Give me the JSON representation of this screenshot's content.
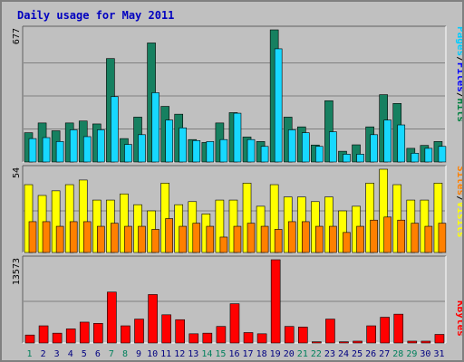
{
  "title": "Daily usage for May 2011",
  "colors": {
    "background": "#c0c0c0",
    "panel": "#c0c0c0",
    "grid": "#808080",
    "pages": "#00ccff",
    "files": "#0000ff",
    "hits": "#008040",
    "hits_bar": "#168060",
    "pages_bar": "#17d8ff",
    "visits": "#ffff00",
    "sites": "#ff8000",
    "kbytes": "#ff0000",
    "weekend_label": "#00805c",
    "weekday_label": "#008040",
    "title": "#0000c0"
  },
  "legend": {
    "pages": "Pages",
    "files": "Files",
    "hits": "Hits",
    "visits": "Visits",
    "sites": "Sites",
    "kbytes": "KBytes",
    "sep": "/"
  },
  "chart_data": [
    {
      "type": "bar",
      "name": "hits-files-pages",
      "ymax_label": "677",
      "ylim": [
        0,
        677
      ],
      "categories": [
        "1",
        "2",
        "3",
        "4",
        "5",
        "6",
        "7",
        "8",
        "9",
        "10",
        "11",
        "12",
        "13",
        "14",
        "15",
        "16",
        "17",
        "18",
        "19",
        "20",
        "21",
        "22",
        "23",
        "24",
        "25",
        "26",
        "27",
        "28",
        "29",
        "30",
        "31"
      ],
      "series": [
        {
          "name": "Hits",
          "values": [
            150,
            200,
            160,
            200,
            210,
            195,
            530,
            120,
            230,
            610,
            285,
            245,
            115,
            100,
            200,
            253,
            128,
            105,
            677,
            230,
            180,
            87,
            314,
            55,
            88,
            180,
            345,
            300,
            70,
            85,
            105
          ]
        },
        {
          "name": "Pages",
          "values": [
            120,
            125,
            105,
            165,
            130,
            165,
            335,
            90,
            140,
            355,
            215,
            175,
            110,
            105,
            115,
            250,
            115,
            80,
            580,
            165,
            150,
            80,
            155,
            40,
            40,
            140,
            215,
            190,
            45,
            70,
            80
          ]
        }
      ]
    },
    {
      "type": "bar",
      "name": "visits-sites",
      "ymax_label": "54",
      "ylim": [
        0,
        54
      ],
      "categories": [
        "1",
        "2",
        "3",
        "4",
        "5",
        "6",
        "7",
        "8",
        "9",
        "10",
        "11",
        "12",
        "13",
        "14",
        "15",
        "16",
        "17",
        "18",
        "19",
        "20",
        "21",
        "22",
        "23",
        "24",
        "25",
        "26",
        "27",
        "28",
        "29",
        "30",
        "31"
      ],
      "series": [
        {
          "name": "Visits",
          "values": [
            44,
            37,
            40,
            44,
            47,
            34,
            34,
            38,
            31,
            27,
            45,
            31,
            33,
            25,
            34,
            34,
            45,
            30,
            44,
            36,
            36,
            33,
            36,
            27,
            30,
            45,
            54,
            44,
            34,
            34,
            45
          ]
        },
        {
          "name": "Sites",
          "values": [
            20,
            20,
            17,
            20,
            20,
            17,
            19,
            17,
            17,
            15,
            22,
            17,
            19,
            17,
            10,
            17,
            19,
            17,
            15,
            20,
            20,
            17,
            17,
            13,
            17,
            21,
            23,
            21,
            19,
            17,
            19
          ]
        }
      ]
    },
    {
      "type": "bar",
      "name": "kbytes",
      "ymax_label": "13573",
      "ylim": [
        0,
        13573
      ],
      "categories": [
        "1",
        "2",
        "3",
        "4",
        "5",
        "6",
        "7",
        "8",
        "9",
        "10",
        "11",
        "12",
        "13",
        "14",
        "15",
        "16",
        "17",
        "18",
        "19",
        "20",
        "21",
        "22",
        "23",
        "24",
        "25",
        "26",
        "27",
        "28",
        "29",
        "30",
        "31"
      ],
      "series": [
        {
          "name": "KBytes",
          "values": [
            1300,
            2800,
            1600,
            2300,
            3400,
            3200,
            8300,
            2800,
            3900,
            7900,
            4600,
            3800,
            1500,
            1600,
            2700,
            6400,
            1700,
            1500,
            13573,
            2700,
            2600,
            200,
            3900,
            200,
            300,
            2800,
            4200,
            4700,
            300,
            300,
            1400
          ]
        }
      ]
    }
  ],
  "weekend_days": [
    1,
    7,
    8,
    14,
    15,
    21,
    22,
    28,
    29
  ]
}
